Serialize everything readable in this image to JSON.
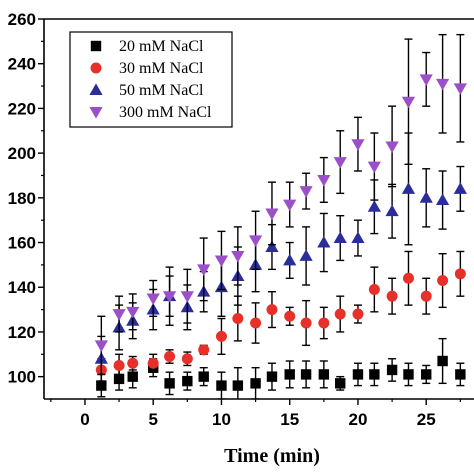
{
  "chart_data": {
    "type": "scatter",
    "title": "",
    "xlabel": "Time (min)",
    "ylabel": "",
    "xlim": [
      -3.0,
      28.5
    ],
    "ylim": [
      90,
      260
    ],
    "xticks": [
      0,
      5,
      10,
      15,
      20,
      25
    ],
    "yticks": [
      100,
      120,
      140,
      160,
      180,
      200,
      220,
      240,
      260
    ],
    "legend_position": "top-left",
    "grid": false,
    "series": [
      {
        "name": "20 mM NaCl",
        "marker": "square",
        "color": "#000000",
        "x": [
          1.2,
          2.5,
          3.5,
          5.0,
          6.2,
          7.5,
          8.7,
          10.0,
          11.2,
          12.5,
          13.7,
          15.0,
          16.2,
          17.5,
          18.7,
          20.0,
          21.2,
          22.5,
          23.7,
          25.0,
          26.2,
          27.5
        ],
        "y": [
          96,
          99,
          100,
          104,
          97,
          98,
          100,
          96,
          96,
          97,
          100,
          101,
          101,
          101,
          97,
          101,
          101,
          103,
          101,
          101,
          107,
          101
        ],
        "err": [
          5,
          5,
          5,
          4,
          5,
          4,
          4,
          6,
          8,
          7,
          6,
          6,
          6,
          6,
          3,
          5,
          5,
          5,
          5,
          4,
          10,
          5
        ]
      },
      {
        "name": "30 mM NaCl",
        "marker": "circle",
        "color": "#e8302a",
        "x": [
          1.2,
          2.5,
          3.5,
          5.0,
          6.2,
          7.5,
          8.7,
          10.0,
          11.2,
          12.5,
          13.7,
          15.0,
          16.2,
          17.5,
          18.7,
          20.0,
          21.2,
          22.5,
          23.7,
          25.0,
          26.2,
          27.5
        ],
        "y": [
          103,
          105,
          106,
          106,
          109,
          108,
          112,
          118,
          126,
          124,
          130,
          127,
          124,
          124,
          128,
          128,
          139,
          136,
          144,
          136,
          143,
          146
        ],
        "err": [
          5,
          5,
          3,
          4,
          3,
          3,
          2,
          8,
          10,
          9,
          8,
          4,
          10,
          7,
          8,
          4,
          10,
          8,
          12,
          8,
          12,
          10
        ]
      },
      {
        "name": "50 mM NaCl",
        "marker": "triangle-up",
        "color": "#2b2e9a",
        "x": [
          1.2,
          2.5,
          3.5,
          5.0,
          6.2,
          7.5,
          8.7,
          10.0,
          11.2,
          12.5,
          13.7,
          15.0,
          16.2,
          17.5,
          18.7,
          20.0,
          21.2,
          22.5,
          23.7,
          25.0,
          26.2,
          27.5
        ],
        "y": [
          108,
          122,
          125,
          130,
          136,
          131,
          138,
          140,
          145,
          150,
          158,
          152,
          154,
          160,
          162,
          162,
          176,
          174,
          184,
          180,
          179,
          184
        ],
        "err": [
          10,
          10,
          8,
          9,
          9,
          10,
          9,
          13,
          13,
          12,
          10,
          8,
          13,
          13,
          10,
          8,
          12,
          12,
          25,
          13,
          13,
          10
        ]
      },
      {
        "name": "300 mM NaCl",
        "marker": "triangle-down",
        "color": "#9b4fc9",
        "x": [
          1.2,
          2.5,
          3.5,
          5.0,
          6.2,
          7.5,
          8.7,
          10.0,
          11.2,
          12.5,
          13.7,
          15.0,
          16.2,
          17.5,
          18.7,
          20.0,
          21.2,
          22.5,
          23.7,
          25.0,
          26.2,
          27.5
        ],
        "y": [
          114,
          128,
          129,
          135,
          136,
          136,
          148,
          152,
          154,
          161,
          173,
          177,
          183,
          188,
          196,
          204,
          194,
          203,
          223,
          233,
          231,
          229
        ],
        "err": [
          13,
          8,
          8,
          8,
          13,
          12,
          14,
          13,
          13,
          13,
          14,
          10,
          8,
          10,
          14,
          12,
          15,
          18,
          28,
          12,
          22,
          24
        ]
      }
    ]
  }
}
